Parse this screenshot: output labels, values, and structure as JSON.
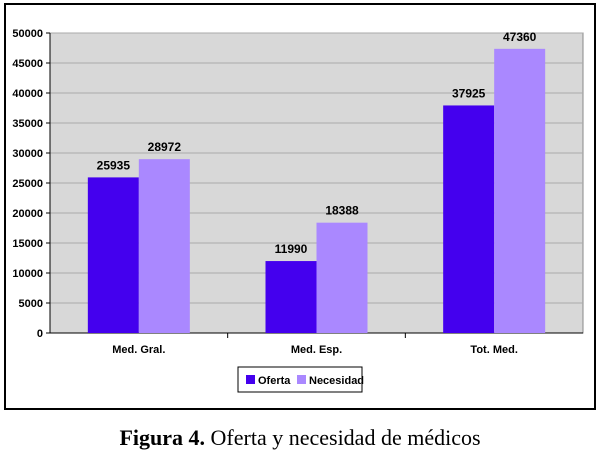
{
  "caption": {
    "label": "Figura 4.",
    "text": "Oferta y necesidad de médicos"
  },
  "chart_data": {
    "type": "bar",
    "title": "",
    "xlabel": "",
    "ylabel": "",
    "categories": [
      "Med. Gral.",
      "Med. Esp.",
      "Tot. Med."
    ],
    "series": [
      {
        "name": "Oferta",
        "color": "#4400ee",
        "values": [
          25935,
          11990,
          37925
        ]
      },
      {
        "name": "Necesidad",
        "color": "#aa88ff",
        "values": [
          28972,
          18388,
          47360
        ]
      }
    ],
    "ylim": [
      0,
      50000
    ],
    "yticks": [
      0,
      5000,
      10000,
      15000,
      20000,
      25000,
      30000,
      35000,
      40000,
      45000,
      50000
    ],
    "grid": true,
    "plot_background": "#d8d8d8",
    "legend_position": "bottom-center"
  }
}
